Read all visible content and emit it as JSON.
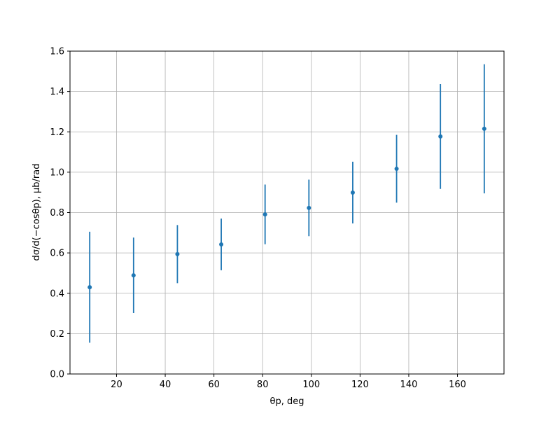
{
  "chart_data": {
    "type": "errorbar",
    "x_label": "θp, deg",
    "y_label": "dσ/d(−cosθp), µb/rad",
    "x": [
      9,
      27,
      45,
      63,
      81,
      99,
      117,
      135,
      153,
      171
    ],
    "series": [
      {
        "color": "#1f77b4",
        "values": [
          0.43,
          0.489,
          0.594,
          0.642,
          0.791,
          0.823,
          0.899,
          1.017,
          1.177,
          1.215
        ],
        "errors": [
          0.275,
          0.187,
          0.144,
          0.128,
          0.148,
          0.14,
          0.153,
          0.168,
          0.26,
          0.32
        ]
      }
    ],
    "xlim": [
      0.9,
      179.1
    ],
    "xticks": [
      20,
      40,
      60,
      80,
      100,
      120,
      140,
      160
    ],
    "ylim": [
      0,
      1.6
    ],
    "yticks": [
      {
        "value": 0,
        "label": "0.0"
      },
      0.2,
      0.4,
      0.6,
      0.8,
      {
        "value": 1,
        "label": "1.0"
      },
      1.2,
      1.4,
      1.6
    ],
    "grid": true
  }
}
